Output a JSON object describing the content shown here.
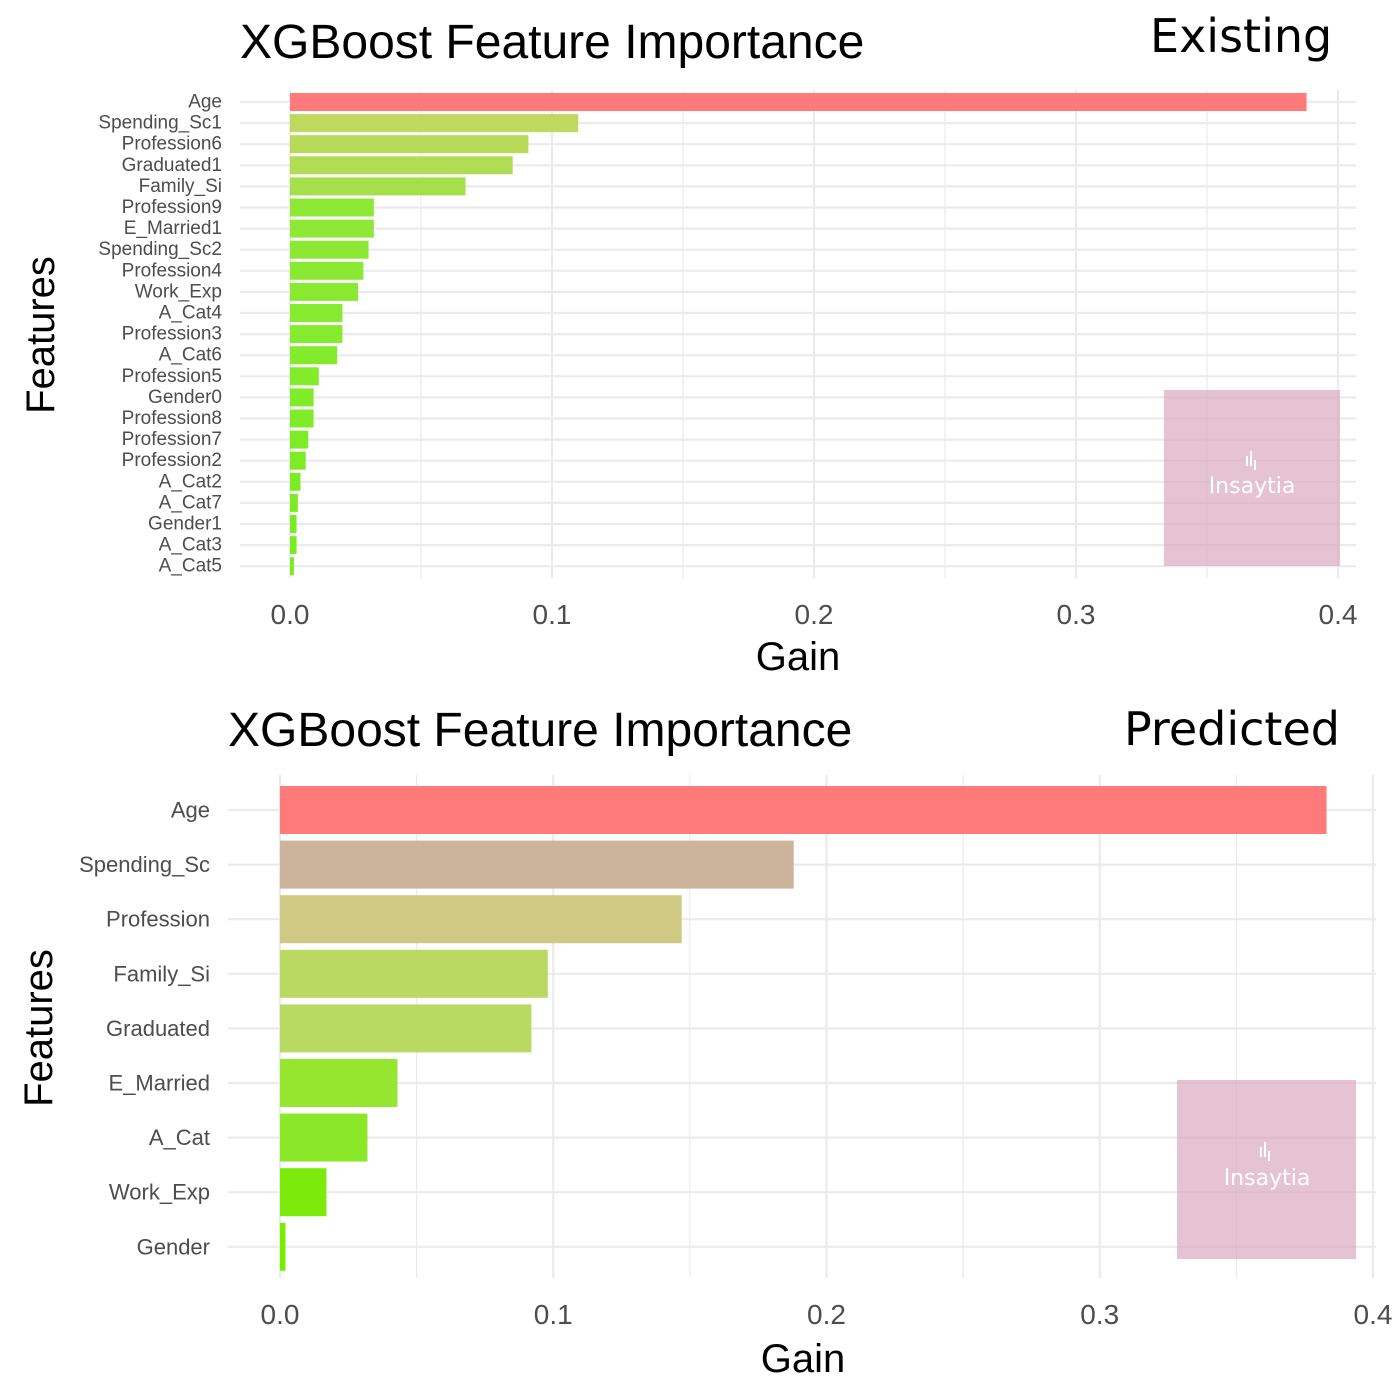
{
  "chart_data": [
    {
      "type": "bar",
      "orientation": "horizontal",
      "title": "XGBoost Feature Importance",
      "tag": "Existing",
      "xlabel": "Gain",
      "ylabel": "Features",
      "xlim": [
        0,
        0.4
      ],
      "xticks": [
        "0.0",
        "0.1",
        "0.2",
        "0.3",
        "0.4"
      ],
      "grid": true,
      "watermark": "Insaytia",
      "categories": [
        "Age",
        "Spending_Sc1",
        "Profession6",
        "Graduated1",
        "Family_Si",
        "Profession9",
        "E_Married1",
        "Spending_Sc2",
        "Profession4",
        "Work_Exp",
        "A_Cat4",
        "Profession3",
        "A_Cat6",
        "Profession5",
        "Gender0",
        "Profession8",
        "Profession7",
        "Profession2",
        "A_Cat2",
        "A_Cat7",
        "Gender1",
        "A_Cat3",
        "A_Cat5"
      ],
      "values": [
        0.388,
        0.11,
        0.091,
        0.085,
        0.067,
        0.032,
        0.032,
        0.03,
        0.028,
        0.026,
        0.02,
        0.02,
        0.018,
        0.011,
        0.009,
        0.009,
        0.007,
        0.006,
        0.004,
        0.003,
        0.0025,
        0.0025,
        0.0015
      ],
      "colors": [
        "#ff7b7b",
        "#bfd85e",
        "#b9da59",
        "#b3dc55",
        "#a5e04c",
        "#8ee836",
        "#8ee836",
        "#8ce834",
        "#8ae932",
        "#88e930",
        "#86ea2e",
        "#86ea2e",
        "#84ea2c",
        "#82eb2a",
        "#80eb28",
        "#80eb28",
        "#7eeb26",
        "#7eeb26",
        "#7cec24",
        "#7cec24",
        "#7aec22",
        "#7aec22",
        "#7aec22"
      ]
    },
    {
      "type": "bar",
      "orientation": "horizontal",
      "title": "XGBoost Feature Importance",
      "tag": "Predicted",
      "xlabel": "Gain",
      "ylabel": "Features",
      "xlim": [
        0,
        0.4
      ],
      "xticks": [
        "0.0",
        "0.1",
        "0.2",
        "0.3",
        "0.4"
      ],
      "grid": true,
      "watermark": "Insaytia",
      "categories": [
        "Age",
        "Spending_Sc",
        "Profession",
        "Family_Si",
        "Graduated",
        "E_Married",
        "A_Cat",
        "Work_Exp",
        "Gender"
      ],
      "values": [
        0.383,
        0.188,
        0.147,
        0.098,
        0.092,
        0.043,
        0.032,
        0.017,
        0.002
      ],
      "colors": [
        "#ff7b7b",
        "#ccb39b",
        "#cfc983",
        "#bad962",
        "#b8d962",
        "#96e62f",
        "#8ae829",
        "#7ceb0c",
        "#76ee00"
      ]
    }
  ]
}
